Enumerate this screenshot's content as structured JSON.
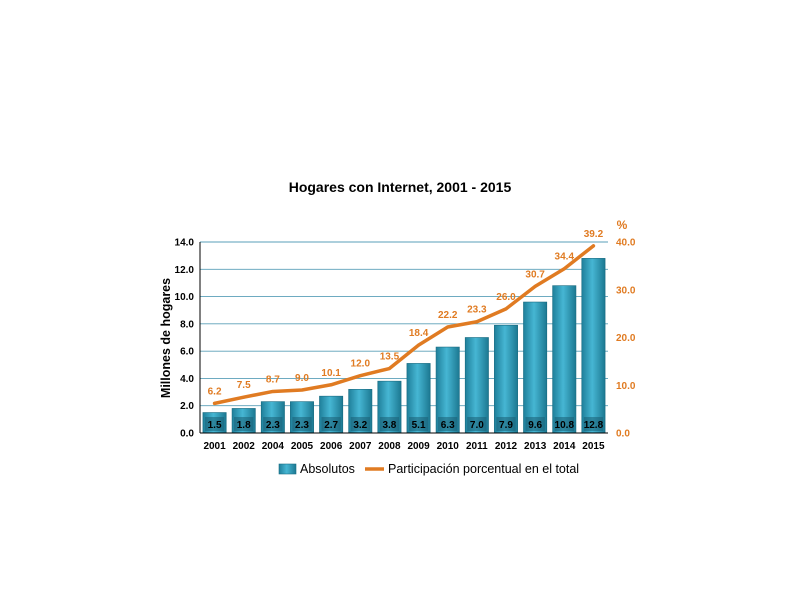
{
  "chart_data": {
    "type": "bar",
    "title": "Hogares con Internet, 2001 - 2015",
    "ylabel": "Millones de hogares",
    "y2label": "%",
    "categories": [
      "2001",
      "2002",
      "2004",
      "2005",
      "2006",
      "2007",
      "2008",
      "2009",
      "2010",
      "2011",
      "2012",
      "2013",
      "2014",
      "2015"
    ],
    "ylim": [
      0,
      14
    ],
    "yticks": [
      "0.0",
      "2.0",
      "4.0",
      "6.0",
      "8.0",
      "10.0",
      "12.0",
      "14.0"
    ],
    "y2lim": [
      0,
      40
    ],
    "y2ticks": [
      "0.0",
      "10.0",
      "20.0",
      "30.0",
      "40.0"
    ],
    "grid": true,
    "legend_position": "bottom",
    "series": [
      {
        "name": "Absolutos",
        "type": "bar",
        "axis": "left",
        "values": [
          1.5,
          1.8,
          2.3,
          2.3,
          2.7,
          3.2,
          3.8,
          5.1,
          6.3,
          7.0,
          7.9,
          9.6,
          10.8,
          12.8
        ],
        "labels": [
          "1.5",
          "1.8",
          "2.3",
          "2.3",
          "2.7",
          "3.2",
          "3.8",
          "5.1",
          "6.3",
          "7.0",
          "7.9",
          "9.6",
          "10.8",
          "12.8"
        ],
        "color": "#2e9fbd"
      },
      {
        "name": "Participación porcentual en el total",
        "type": "line",
        "axis": "right",
        "values": [
          6.2,
          7.5,
          8.7,
          9.0,
          10.1,
          12.0,
          13.5,
          18.4,
          22.2,
          23.3,
          26.0,
          30.7,
          34.4,
          39.2
        ],
        "labels": [
          "6.2",
          "7.5",
          "8.7",
          "9.0",
          "10.1",
          "12.0",
          "13.5",
          "18.4",
          "22.2",
          "23.3",
          "26.0",
          "30.7",
          "34.4",
          "39.2"
        ],
        "color": "#e07b22"
      }
    ]
  }
}
